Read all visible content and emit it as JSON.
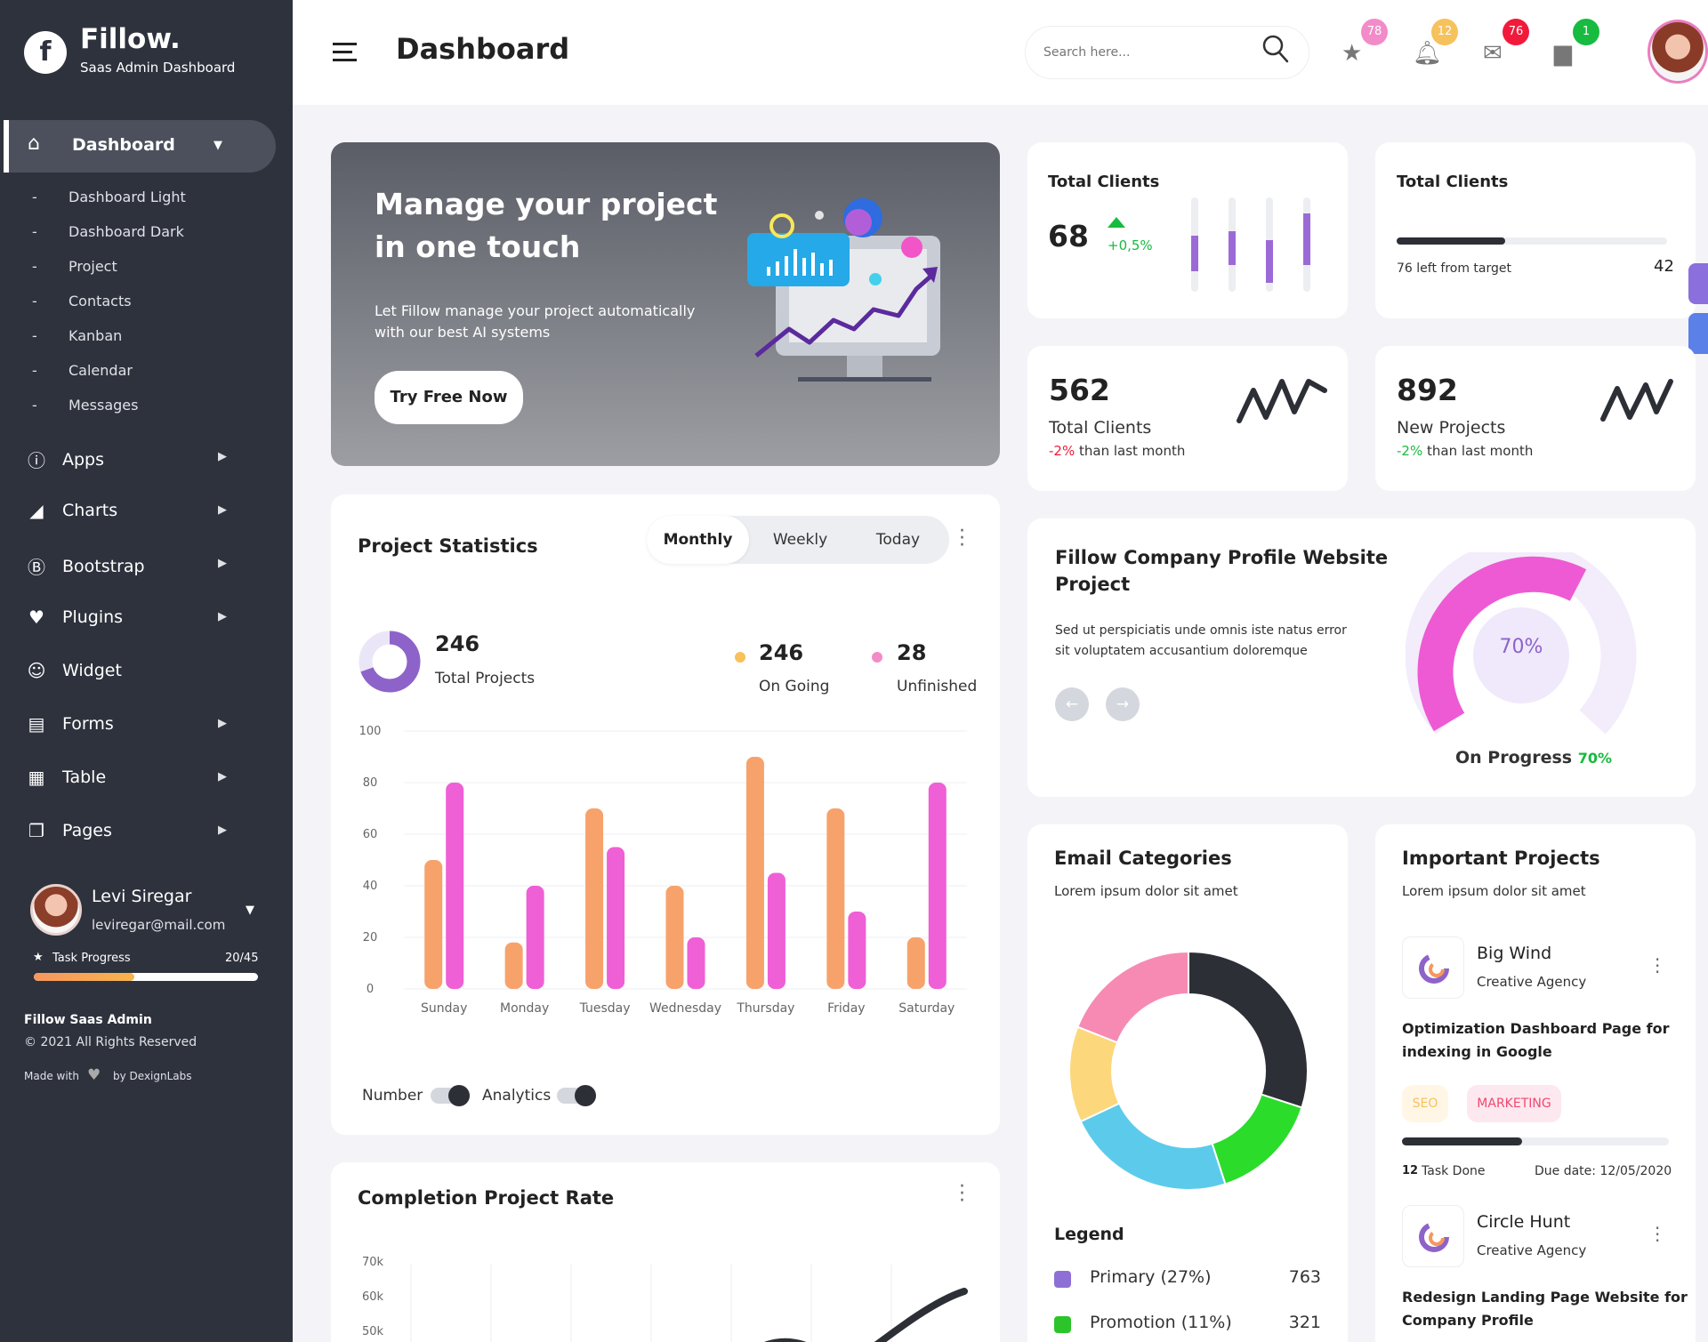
{
  "brand": {
    "name": "Fillow.",
    "subtitle": "Saas Admin Dashboard",
    "logo_letter": "f"
  },
  "sidebar": {
    "active": {
      "label": "Dashboard"
    },
    "sub_items": [
      "Dashboard Light",
      "Dashboard Dark",
      "Project",
      "Contacts",
      "Kanban",
      "Calendar",
      "Messages"
    ],
    "items": [
      {
        "label": "Apps",
        "icon": "info-icon"
      },
      {
        "label": "Charts",
        "icon": "chart-icon"
      },
      {
        "label": "Bootstrap",
        "icon": "bootstrap-icon"
      },
      {
        "label": "Plugins",
        "icon": "heart-icon"
      },
      {
        "label": "Widget",
        "icon": "user-check-icon"
      },
      {
        "label": "Forms",
        "icon": "file-icon"
      },
      {
        "label": "Table",
        "icon": "table-icon"
      },
      {
        "label": "Pages",
        "icon": "pages-icon"
      }
    ],
    "user": {
      "name": "Levi Siregar",
      "email": "leviregar@mail.com",
      "task_label": "Task Progress",
      "task_count": "20/45",
      "task_progress": 0.44
    },
    "footer": {
      "title": "Fillow Saas Admin",
      "copyright": "© 2021 All Rights Reserved",
      "made_with": "Made with",
      "by": "by DexignLabs"
    }
  },
  "header": {
    "title": "Dashboard",
    "search_placeholder": "Search here...",
    "badges": {
      "star": "78",
      "bell": "12",
      "mail": "76",
      "calendar": "1"
    }
  },
  "banner": {
    "title_line1": "Manage your project",
    "title_line2": "in one touch",
    "desc_line1": "Let Fillow manage your project automatically",
    "desc_line2": "with our best AI systems",
    "button": "Try Free Now"
  },
  "stats": {
    "card1": {
      "title": "Total Clients",
      "value": "68",
      "change": "+0,5%"
    },
    "card2": {
      "title": "Total Clients",
      "left_label": "76 left from target",
      "value": "42",
      "progress": 0.4
    },
    "card3": {
      "value": "562",
      "label": "Total Clients",
      "change": "-2%",
      "suffix": "than last month"
    },
    "card4": {
      "value": "892",
      "label": "New Projects",
      "change": "-2%",
      "suffix": "than last month"
    }
  },
  "project_stats": {
    "title": "Project Statistics",
    "tabs": [
      "Monthly",
      "Weekly",
      "Today"
    ],
    "total": "246",
    "total_label": "Total Projects",
    "ongoing": "246",
    "ongoing_label": "On Going",
    "unfinished": "28",
    "unfinished_label": "Unfinished",
    "toggle1": "Number",
    "toggle2": "Analytics"
  },
  "completion": {
    "title": "Completion Project Rate",
    "yticks": [
      "70k",
      "60k",
      "50k"
    ]
  },
  "profile_project": {
    "title_line1": "Fillow Company Profile Website",
    "title_line2": "Project",
    "desc_line1": "Sed ut perspiciatis unde omnis iste natus error",
    "desc_line2": "sit voluptatem accusantium doloremque",
    "percent": "70%",
    "progress_label": "On Progress",
    "progress_value": "70%"
  },
  "email_categories": {
    "title": "Email Categories",
    "subtitle": "Lorem ipsum dolor sit amet",
    "legend_title": "Legend",
    "legend": [
      {
        "label": "Primary (27%)",
        "value": "763",
        "color": "#8e6fd6"
      },
      {
        "label": "Promotion (11%)",
        "value": "321",
        "color": "#2bc42b"
      }
    ]
  },
  "important_projects": {
    "title": "Important Projects",
    "subtitle": "Lorem ipsum dolor sit amet",
    "projects": [
      {
        "name": "Big Wind",
        "agency": "Creative Agency",
        "task": "Optimization Dashboard Page for",
        "task2": "indexing in Google",
        "tags": [
          "SEO",
          "MARKETING"
        ],
        "done_count": "12",
        "done_label": "Task Done",
        "due": "Due date: 12/05/2020",
        "progress": 0.45
      },
      {
        "name": "Circle Hunt",
        "agency": "Creative Agency",
        "task": "Redesign Landing Page Website for",
        "task2": "Company Profile"
      }
    ]
  },
  "chart_data": [
    {
      "type": "bar",
      "categories": [
        "Sunday",
        "Monday",
        "Tuesday",
        "Wednesday",
        "Thursday",
        "Friday",
        "Saturday"
      ],
      "series": [
        {
          "values": [
            50,
            18,
            70,
            40,
            90,
            70,
            20
          ]
        },
        {
          "values": [
            80,
            40,
            55,
            20,
            45,
            30,
            80
          ]
        }
      ],
      "ylim": [
        0,
        100
      ],
      "yticks": [
        0,
        20,
        40,
        60,
        80,
        100
      ],
      "colors": [
        "#f7a26b",
        "#ef5fd6"
      ]
    },
    {
      "type": "pie",
      "labels": [
        "Primary",
        "Promotion"
      ],
      "values": [
        27,
        11
      ]
    },
    {
      "type": "donut",
      "values": [
        30,
        15,
        23,
        13,
        19
      ],
      "colors": [
        "#2c2f36",
        "#2bdc2b",
        "#5ccbeb",
        "#fcd77b",
        "#f68ab3"
      ]
    }
  ]
}
